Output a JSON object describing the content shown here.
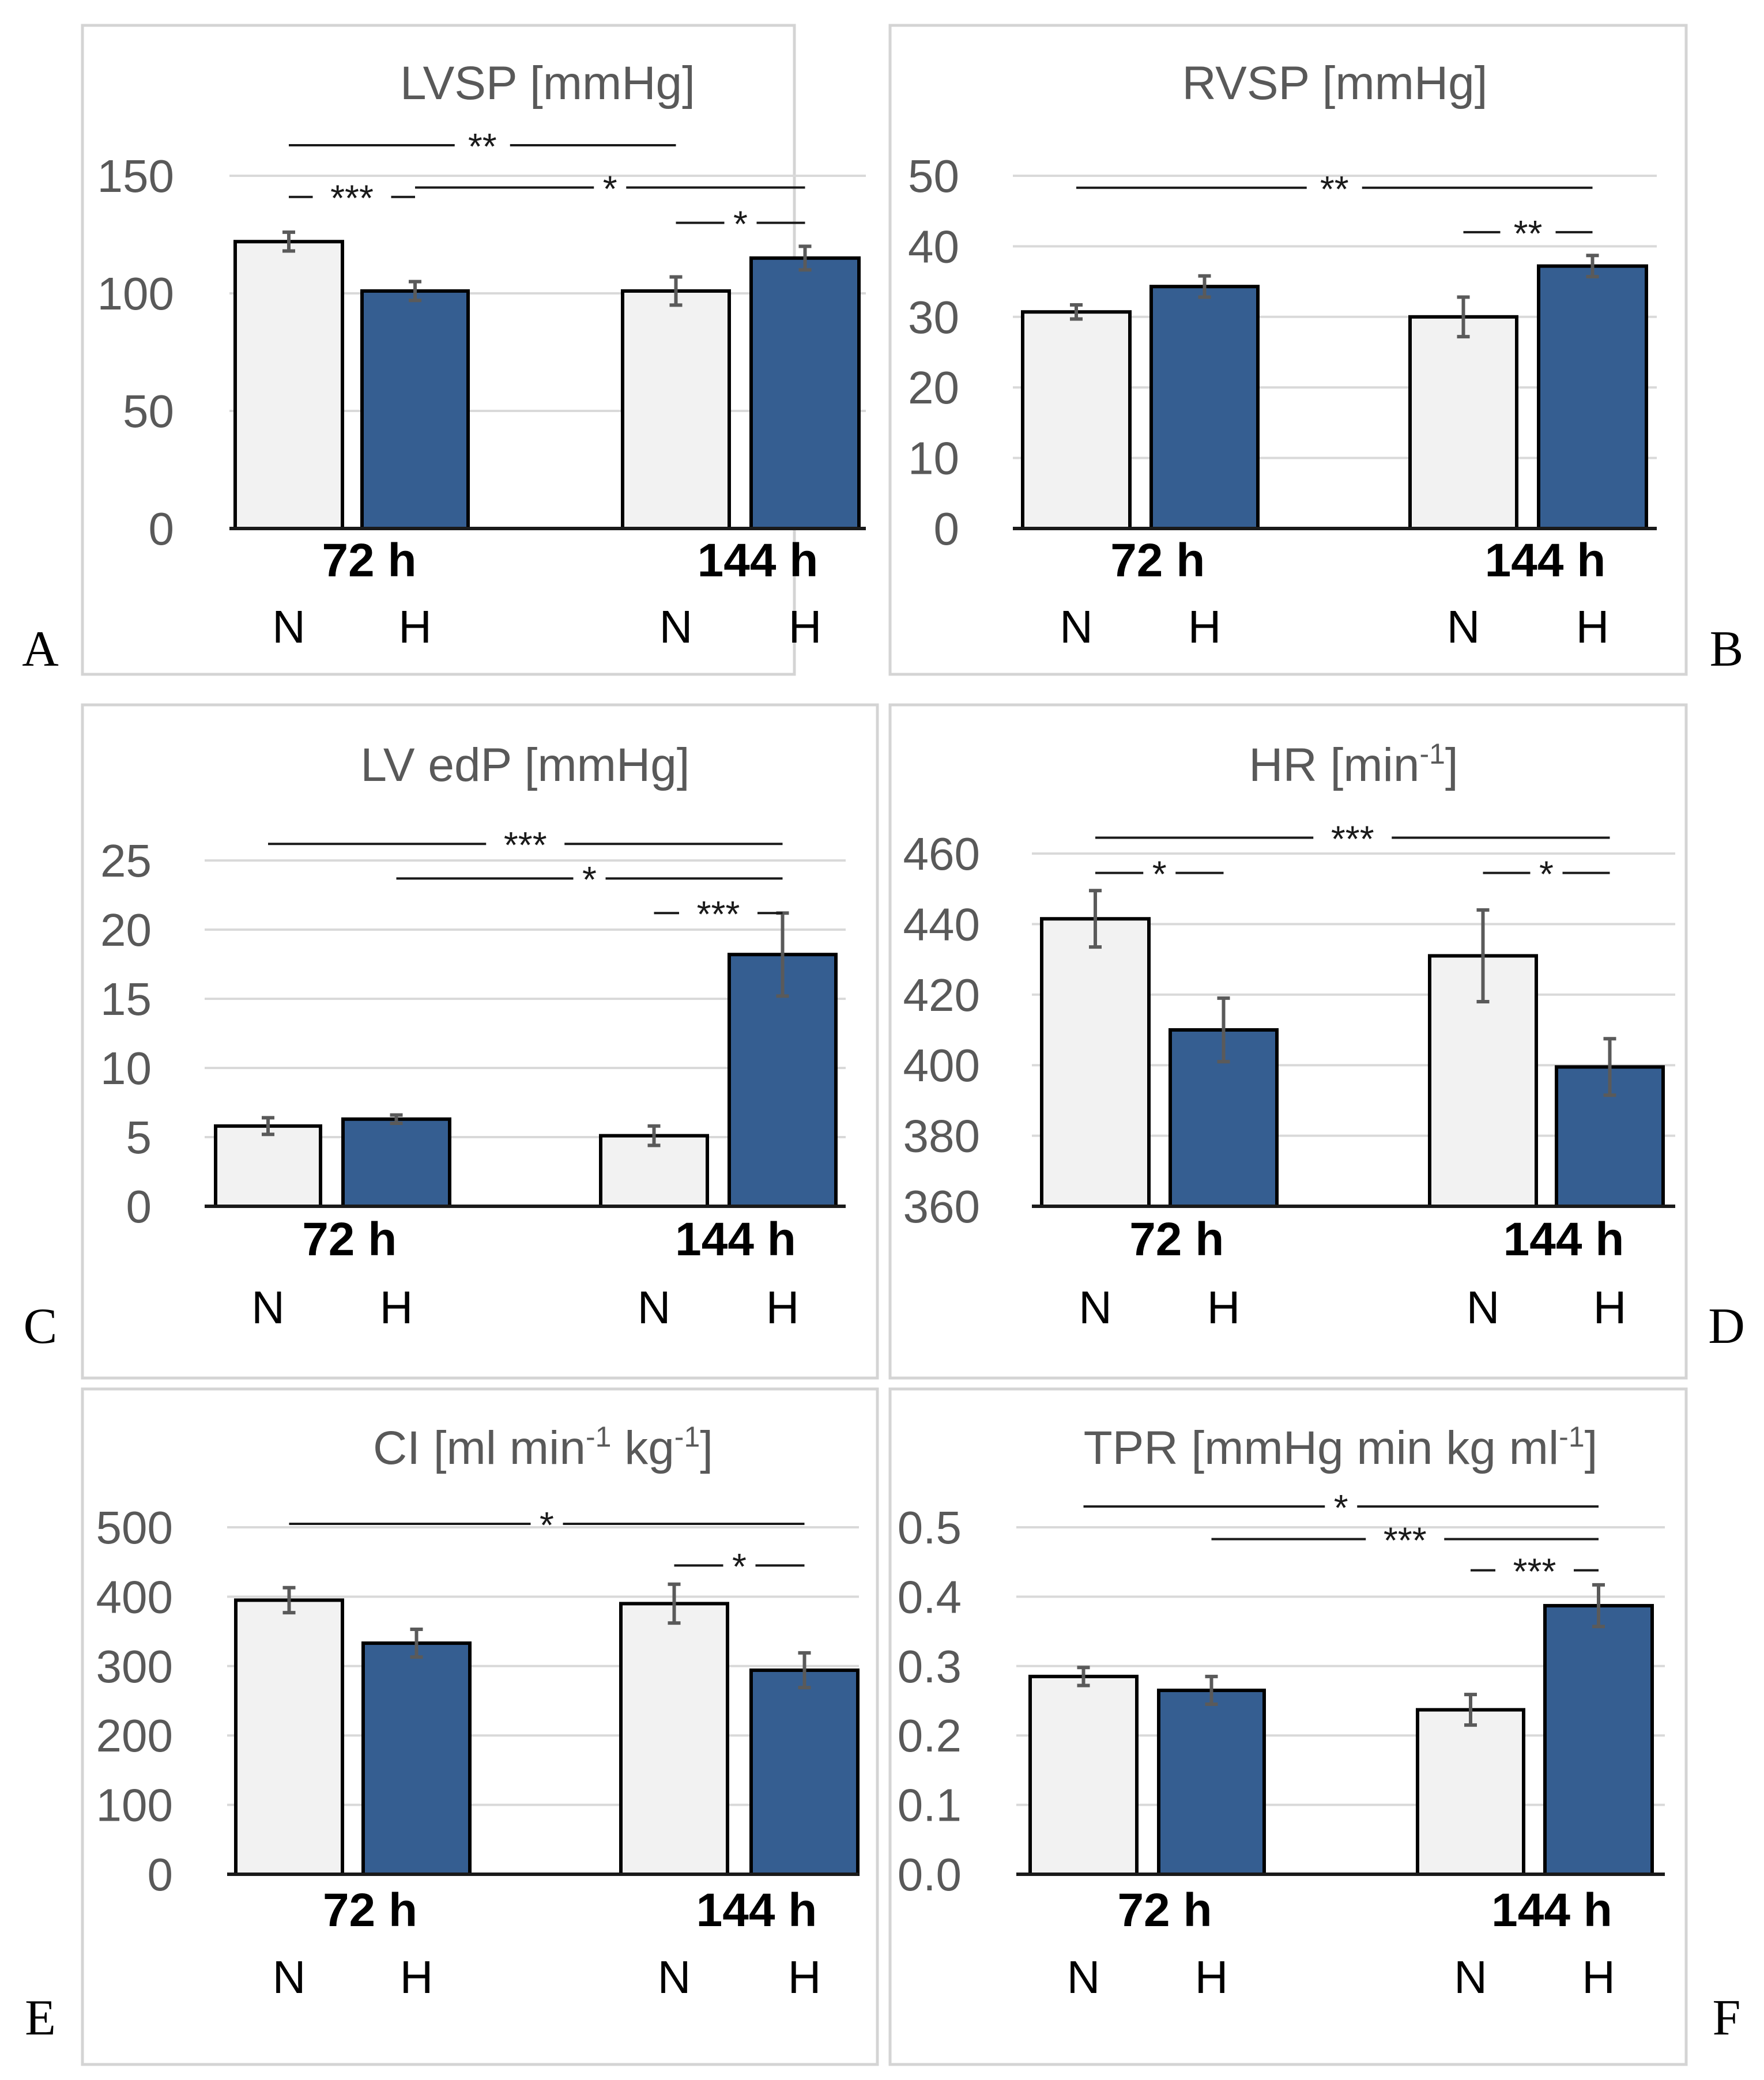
{
  "colors": {
    "normoxia": "#f2f2f2",
    "hypoxia": "#355e91"
  },
  "chart_data": [
    {
      "panel": "A",
      "type": "bar",
      "title": "LVSP [mmHg]",
      "title_sup": "",
      "title_end": "",
      "yticks": [
        "0",
        "50",
        "100",
        "150"
      ],
      "ylim": [
        0,
        150
      ],
      "groups": [
        "72 h",
        "144 h"
      ],
      "conditions": [
        "N",
        "H"
      ],
      "series": [
        {
          "values": [
            122,
            101
          ]
        },
        {
          "values": [
            101,
            115
          ]
        }
      ],
      "errors": [
        [
          4,
          4
        ],
        [
          6,
          5
        ]
      ],
      "significance": [
        {
          "label": "***",
          "from": [
            0,
            0
          ],
          "to": [
            0,
            1
          ],
          "y": 141,
          "tilt": 0
        },
        {
          "label": "**",
          "from": [
            0,
            0
          ],
          "to": [
            1,
            0
          ],
          "y": 163,
          "tilt": 0
        },
        {
          "label": "*",
          "from": [
            0,
            1
          ],
          "to": [
            1,
            1
          ],
          "y": 145,
          "tilt": 0
        },
        {
          "label": "*",
          "from": [
            1,
            0
          ],
          "to": [
            1,
            1
          ],
          "y": 130,
          "tilt": 0
        }
      ]
    },
    {
      "panel": "B",
      "type": "bar",
      "title": "RVSP [mmHg]",
      "title_sup": "",
      "title_end": "",
      "yticks": [
        "0",
        "10",
        "20",
        "30",
        "40",
        "50"
      ],
      "ylim": [
        0,
        50
      ],
      "groups": [
        "72 h",
        "144 h"
      ],
      "conditions": [
        "N",
        "H"
      ],
      "series": [
        {
          "values": [
            30.7,
            34.3
          ]
        },
        {
          "values": [
            30,
            37.2
          ]
        }
      ],
      "errors": [
        [
          1,
          1.5
        ],
        [
          2.8,
          1.5
        ]
      ],
      "significance": [
        {
          "label": "**",
          "from": [
            0,
            0
          ],
          "to": [
            1,
            1
          ],
          "y": 48.3,
          "tilt": 0
        },
        {
          "label": "**",
          "from": [
            1,
            0
          ],
          "to": [
            1,
            1
          ],
          "y": 42,
          "tilt": 0
        }
      ]
    },
    {
      "panel": "C",
      "type": "bar",
      "title": "LV edP [mmHg]",
      "title_sup": "",
      "title_end": "",
      "yticks": [
        "0",
        "5",
        "10",
        "15",
        "20",
        "25"
      ],
      "ylim": [
        0,
        25
      ],
      "groups": [
        "72 h",
        "144 h"
      ],
      "conditions": [
        "N",
        "H"
      ],
      "series": [
        {
          "values": [
            5.8,
            6.3
          ]
        },
        {
          "values": [
            5.1,
            18.2
          ]
        }
      ],
      "errors": [
        [
          0.6,
          0.3
        ],
        [
          0.7,
          3
        ]
      ],
      "significance": [
        {
          "label": "***",
          "from": [
            0,
            0
          ],
          "to": [
            1,
            1
          ],
          "y": 26.2,
          "tilt": 0
        },
        {
          "label": "*",
          "from": [
            0,
            1
          ],
          "to": [
            1,
            1
          ],
          "y": 23.7,
          "tilt": 0
        },
        {
          "label": "***",
          "from": [
            1,
            0
          ],
          "to": [
            1,
            1
          ],
          "y": 21.2,
          "tilt": 0
        }
      ]
    },
    {
      "panel": "D",
      "type": "bar",
      "title": "HR [min",
      "title_sup": "-1",
      "title_end": "]",
      "yticks": [
        "360",
        "380",
        "400",
        "420",
        "440",
        "460"
      ],
      "ylim": [
        360,
        460
      ],
      "groups": [
        "72 h",
        "144 h"
      ],
      "conditions": [
        "N",
        "H"
      ],
      "series": [
        {
          "values": [
            441.5,
            410
          ]
        },
        {
          "values": [
            431,
            399.5
          ]
        }
      ],
      "errors": [
        [
          8,
          9
        ],
        [
          13,
          8
        ]
      ],
      "significance": [
        {
          "label": "***",
          "from": [
            0,
            0
          ],
          "to": [
            1,
            1
          ],
          "y": 464.5,
          "tilt": 0
        },
        {
          "label": "*",
          "from": [
            0,
            0
          ],
          "to": [
            0,
            1
          ],
          "y": 454.5,
          "tilt": 0
        },
        {
          "label": "*",
          "from": [
            1,
            0
          ],
          "to": [
            1,
            1
          ],
          "y": 454.5,
          "tilt": 0
        }
      ]
    },
    {
      "panel": "E",
      "type": "bar",
      "title": "CI [ml min",
      "title_sup": "-1",
      "title_end": " kg",
      "title_sup2": "-1",
      "title_end2": "]",
      "yticks": [
        "0",
        "100",
        "200",
        "300",
        "400",
        "500"
      ],
      "ylim": [
        0,
        500
      ],
      "groups": [
        "72 h",
        "144 h"
      ],
      "conditions": [
        "N",
        "H"
      ],
      "series": [
        {
          "values": [
            395,
            333
          ]
        },
        {
          "values": [
            390,
            294
          ]
        }
      ],
      "errors": [
        [
          18,
          20
        ],
        [
          28,
          25
        ]
      ],
      "significance": [
        {
          "label": "*",
          "from": [
            0,
            0
          ],
          "to": [
            1,
            1
          ],
          "y": 505,
          "tilt": 0
        },
        {
          "label": "*",
          "from": [
            1,
            0
          ],
          "to": [
            1,
            1
          ],
          "y": 445,
          "tilt": 0
        }
      ]
    },
    {
      "panel": "F",
      "type": "bar",
      "title": "TPR [mmHg min kg ml",
      "title_sup": "-1",
      "title_end": "]",
      "yticks": [
        "0.0",
        "0.1",
        "0.2",
        "0.3",
        "0.4",
        "0.5"
      ],
      "ylim": [
        0,
        0.5
      ],
      "groups": [
        "72 h",
        "144 h"
      ],
      "conditions": [
        "N",
        "H"
      ],
      "series": [
        {
          "values": [
            0.285,
            0.265
          ]
        },
        {
          "values": [
            0.237,
            0.387
          ]
        }
      ],
      "errors": [
        [
          0.013,
          0.02
        ],
        [
          0.022,
          0.03
        ]
      ],
      "significance": [
        {
          "label": "*",
          "from": [
            0,
            0
          ],
          "to": [
            1,
            1
          ],
          "y": 0.53,
          "tilt": 0
        },
        {
          "label": "***",
          "from": [
            0,
            1
          ],
          "to": [
            1,
            1
          ],
          "y": 0.483,
          "tilt": 0
        },
        {
          "label": "***",
          "from": [
            1,
            0
          ],
          "to": [
            1,
            1
          ],
          "y": 0.438,
          "tilt": 0
        }
      ]
    }
  ]
}
